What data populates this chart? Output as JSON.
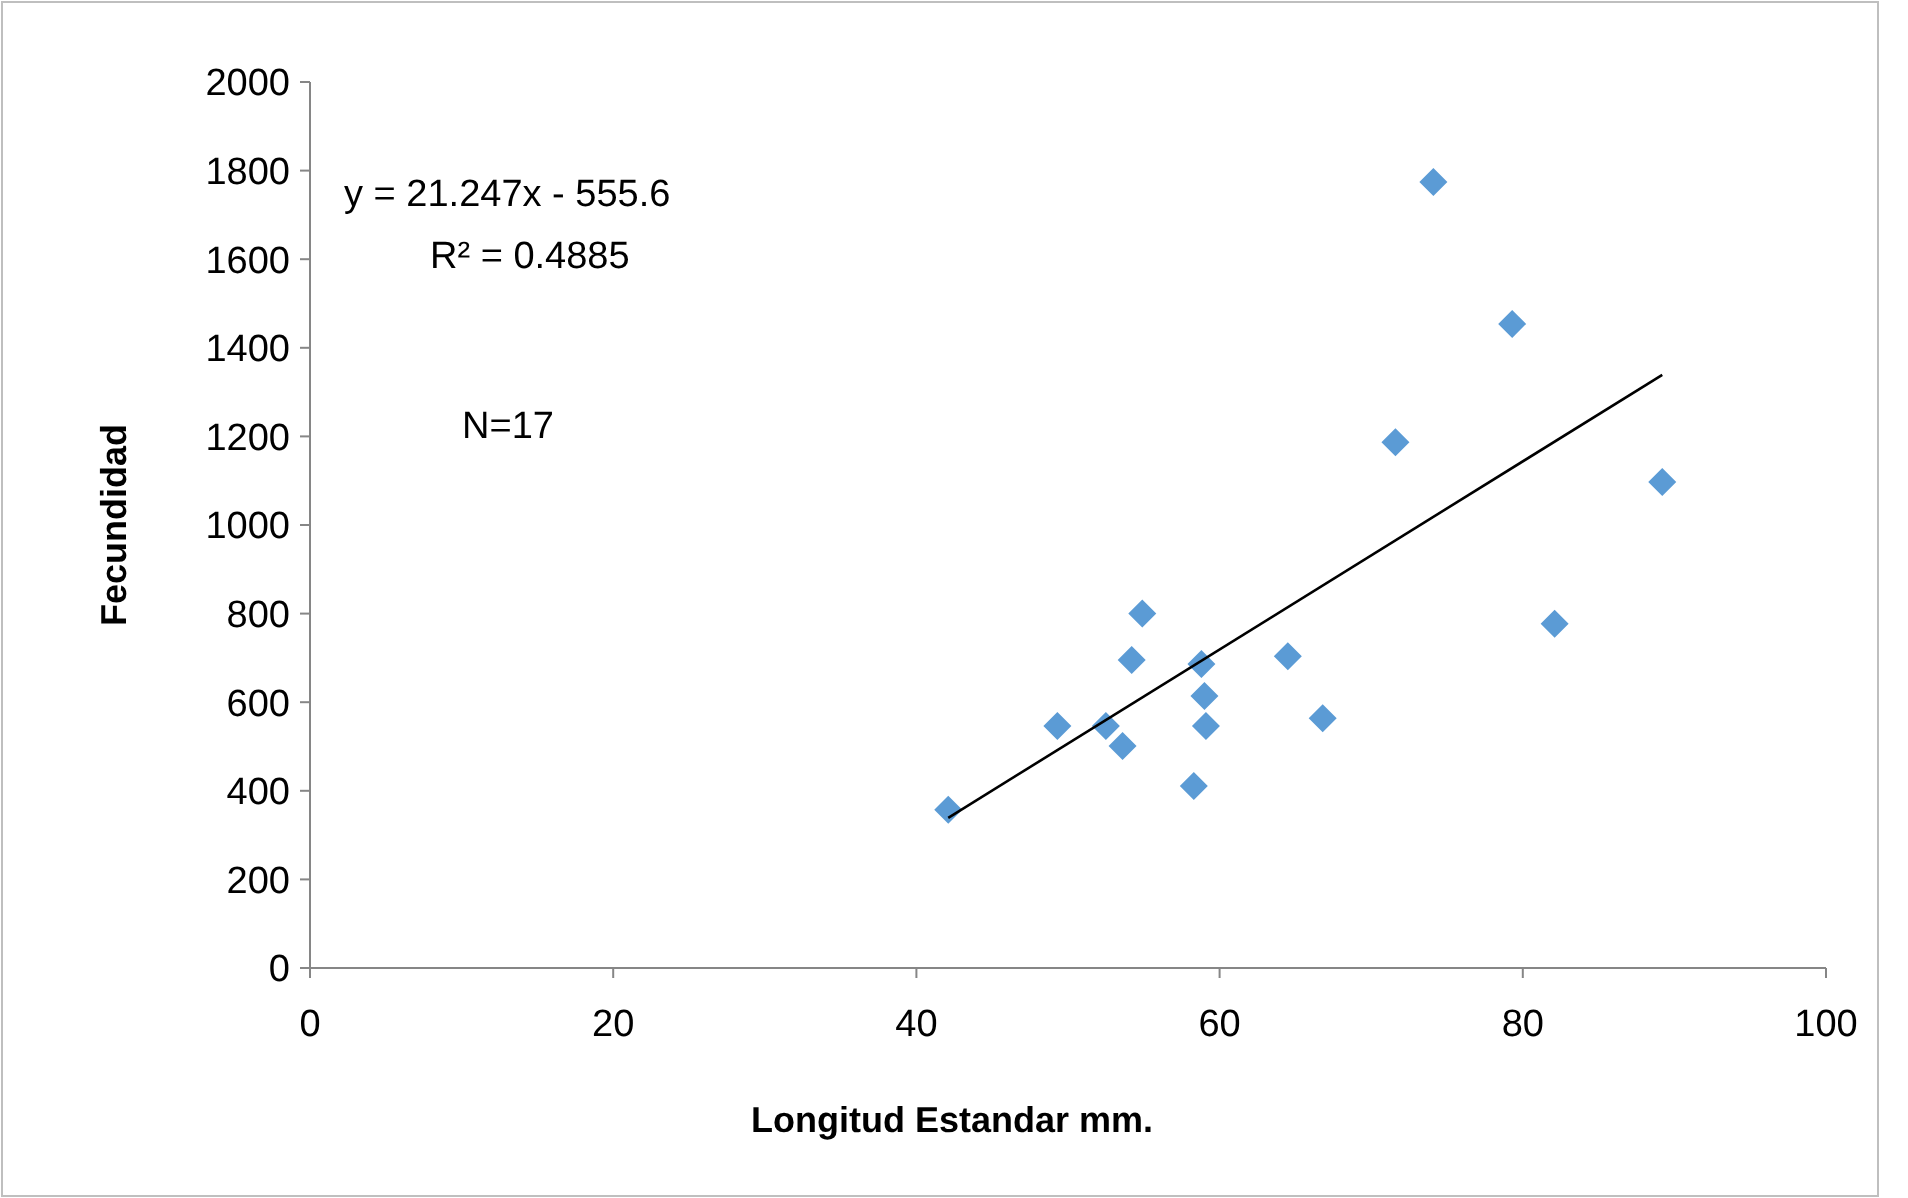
{
  "chart_data": {
    "type": "scatter",
    "xlabel": "Longitud Estandar mm.",
    "ylabel": "Fecundidad",
    "xlim": [
      0,
      100
    ],
    "ylim": [
      0,
      2000
    ],
    "xticks": [
      0,
      20,
      40,
      60,
      80,
      100
    ],
    "yticks": [
      0,
      200,
      400,
      600,
      800,
      1000,
      1200,
      1400,
      1600,
      1800,
      2000
    ],
    "grid": false,
    "annotations": [
      "y = 21.247x - 555.6",
      "R² = 0.4885",
      "N=17"
    ],
    "series": [
      {
        "marker": "diamond",
        "color": "#5b9bd5",
        "x": [
          42.1,
          49.3,
          52.5,
          53.6,
          54.2,
          54.9,
          58.3,
          58.8,
          59.0,
          59.1,
          64.5,
          66.8,
          71.6,
          74.1,
          79.3,
          82.1,
          89.2
        ],
        "values": [
          357,
          546,
          546,
          501,
          695,
          800,
          411,
          686,
          614,
          546,
          704,
          564,
          1187,
          1774,
          1454,
          777,
          1097
        ]
      },
      {
        "type": "line",
        "color": "#000000",
        "x": [
          42.1,
          89.2
        ],
        "values": [
          339,
          1339
        ]
      }
    ]
  }
}
